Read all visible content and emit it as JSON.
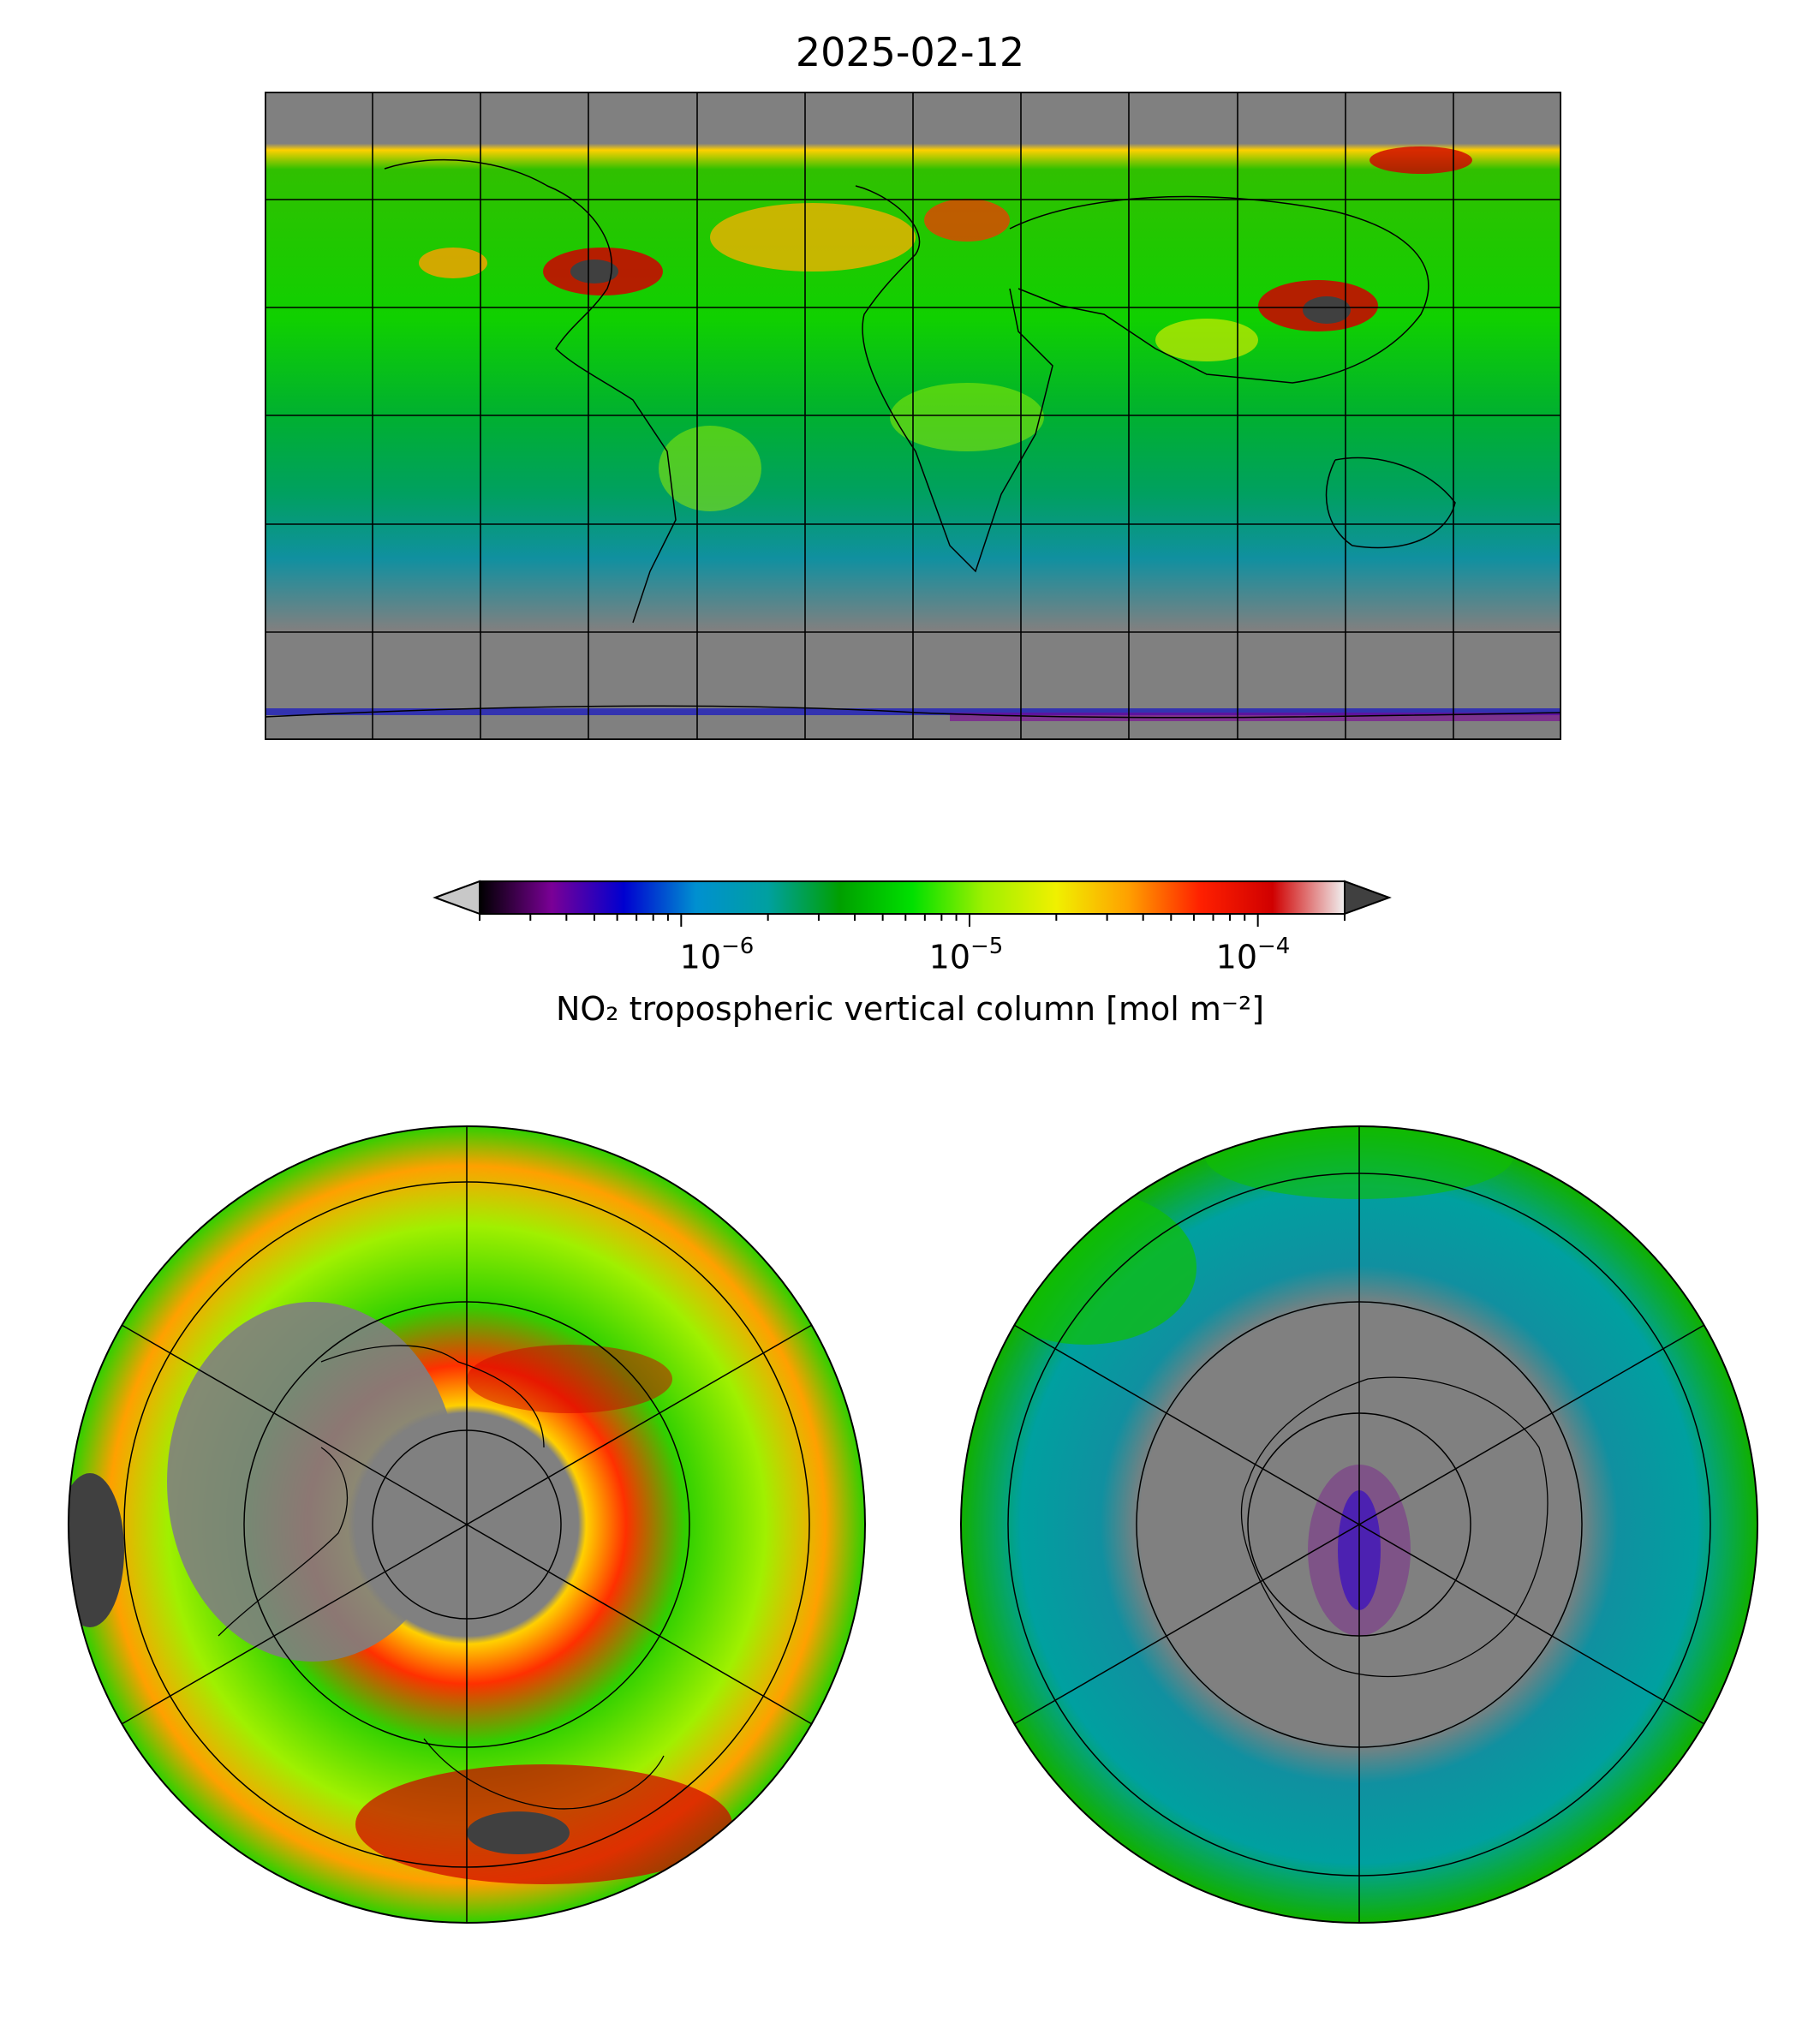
{
  "title": "2025-02-12",
  "colorbar": {
    "label": "NO₂ tropospheric vertical column [mol m⁻²]",
    "ticks": [
      {
        "base": "10",
        "exp": "−6",
        "value": 1e-06
      },
      {
        "base": "10",
        "exp": "−5",
        "value": 1e-05
      },
      {
        "base": "10",
        "exp": "−4",
        "value": 0.0001
      }
    ],
    "range": [
      2e-07,
      0.0002
    ],
    "scale": "log",
    "extend": "both",
    "colors": [
      "#000000",
      "#7a0096",
      "#0000d0",
      "#0090d0",
      "#00a0a0",
      "#00a000",
      "#00e000",
      "#a0f000",
      "#f0f000",
      "#ffa000",
      "#ff2000",
      "#d00000",
      "#f0f0f0"
    ],
    "under_color": "#c8c8c8",
    "over_color": "#404040"
  },
  "maps": {
    "global": {
      "projection": "plate-carree",
      "gridlines": true,
      "no_data_color": "#808080"
    },
    "north_polar": {
      "projection": "north-polar-stereographic"
    },
    "south_polar": {
      "projection": "south-polar-stereographic"
    }
  }
}
